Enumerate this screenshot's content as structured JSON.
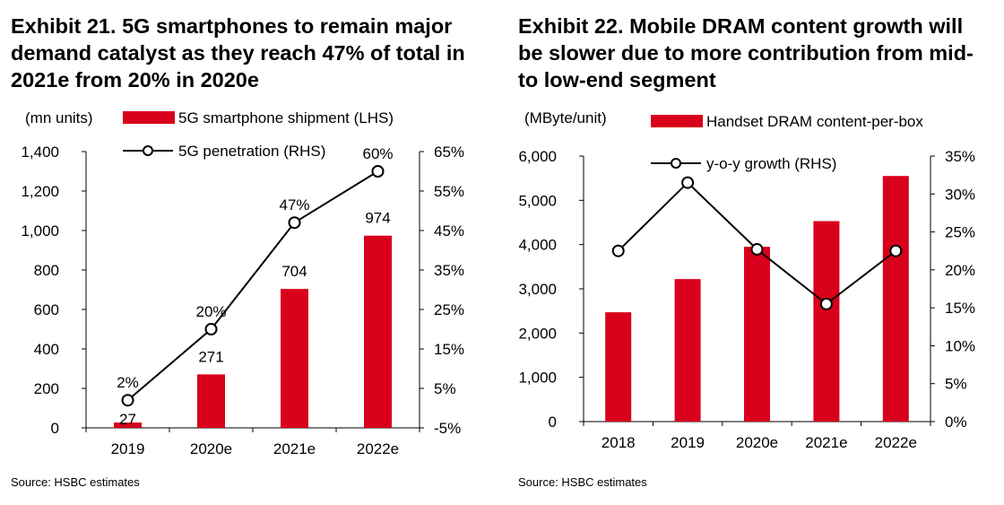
{
  "chart_data": [
    {
      "type": "bar+line",
      "title": "Exhibit 21. 5G smartphones to remain major demand catalyst as they reach 47% of total in 2021e from 20% in 2020e",
      "categories": [
        "2019",
        "2020e",
        "2021e",
        "2022e"
      ],
      "y_left": {
        "label": "(mn units)",
        "min": 0,
        "max": 1400,
        "step": 200,
        "ticks": [
          "0",
          "200",
          "400",
          "600",
          "800",
          "1,000",
          "1,200",
          "1,400"
        ]
      },
      "y_right": {
        "min": -5,
        "max": 65,
        "step": 10,
        "ticks": [
          "-5%",
          "5%",
          "15%",
          "25%",
          "35%",
          "45%",
          "55%",
          "65%"
        ]
      },
      "series": [
        {
          "name": "5G smartphone shipment (LHS)",
          "kind": "bar",
          "axis": "left",
          "color": "#d9001b",
          "values": [
            27,
            271,
            704,
            974
          ],
          "labels": [
            "27",
            "271",
            "704",
            "974"
          ]
        },
        {
          "name": "5G penetration (RHS)",
          "kind": "line",
          "axis": "right",
          "color": "#000000",
          "values": [
            2,
            20,
            47,
            60
          ],
          "labels": [
            "2%",
            "20%",
            "47%",
            "60%"
          ]
        }
      ],
      "legend": "top",
      "grid": false,
      "source": "Source: HSBC estimates"
    },
    {
      "type": "bar+line",
      "title": "Exhibit 22. Mobile DRAM content growth will be slower due to more contribution from mid- to low-end segment",
      "categories": [
        "2018",
        "2019",
        "2020e",
        "2021e",
        "2022e"
      ],
      "y_left": {
        "label": "(MByte/unit)",
        "min": 0,
        "max": 6000,
        "step": 1000,
        "ticks": [
          "0",
          "1,000",
          "2,000",
          "3,000",
          "4,000",
          "5,000",
          "6,000"
        ]
      },
      "y_right": {
        "min": 0,
        "max": 35,
        "step": 5,
        "ticks": [
          "0%",
          "5%",
          "10%",
          "15%",
          "20%",
          "25%",
          "30%",
          "35%"
        ]
      },
      "series": [
        {
          "name": "Handset DRAM content-per-box",
          "kind": "bar",
          "axis": "left",
          "color": "#d9001b",
          "values": [
            2470,
            3220,
            3950,
            4530,
            5550
          ]
        },
        {
          "name": "y-o-y growth (RHS)",
          "kind": "line",
          "axis": "right",
          "color": "#000000",
          "values": [
            22.5,
            31.5,
            22.7,
            15.5,
            22.5
          ]
        }
      ],
      "legend": "top",
      "grid": false,
      "source": "Source: HSBC estimates"
    }
  ]
}
